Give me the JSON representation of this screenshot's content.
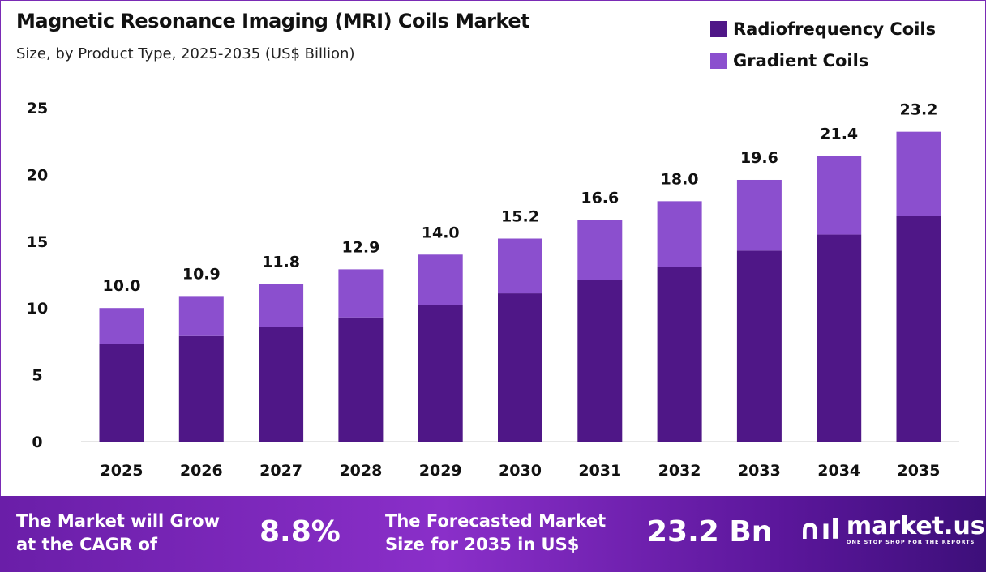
{
  "chart_data": {
    "type": "bar",
    "stacked": true,
    "title": "Magnetic Resonance Imaging (MRI) Coils Market",
    "subtitle": "Size, by Product Type, 2025-2035 (US$ Billion)",
    "categories": [
      "2025",
      "2026",
      "2027",
      "2028",
      "2029",
      "2030",
      "2031",
      "2032",
      "2033",
      "2034",
      "2035"
    ],
    "series": [
      {
        "name": "Radiofrequency Coils",
        "color": "#4f1787",
        "values": [
          7.3,
          7.9,
          8.6,
          9.3,
          10.2,
          11.1,
          12.1,
          13.1,
          14.3,
          15.5,
          16.9
        ]
      },
      {
        "name": "Gradient Coils",
        "color": "#8b4fce",
        "values": [
          2.7,
          3.0,
          3.2,
          3.6,
          3.8,
          4.1,
          4.5,
          4.9,
          5.3,
          5.9,
          6.3
        ]
      }
    ],
    "totals": [
      "10.0",
      "10.9",
      "11.8",
      "12.9",
      "14.0",
      "15.2",
      "16.6",
      "18.0",
      "19.6",
      "21.4",
      "23.2"
    ],
    "yticks": [
      "0",
      "5",
      "10",
      "15",
      "20",
      "25"
    ],
    "ylim": [
      0,
      25
    ],
    "legend_position": "top-right",
    "grid": false
  },
  "footer": {
    "cagr_label": "The Market will Grow at the CAGR of",
    "cagr_label_1": "The Market will Grow",
    "cagr_label_2": "at the CAGR of",
    "cagr_value": "8.8%",
    "forecast_label_1": "The Forecasted Market",
    "forecast_label_2": "Size for 2035 in US$",
    "forecast_value": "23.2 Bn",
    "logo_name": "market.us",
    "logo_tagline": "ONE STOP SHOP FOR THE REPORTS"
  }
}
